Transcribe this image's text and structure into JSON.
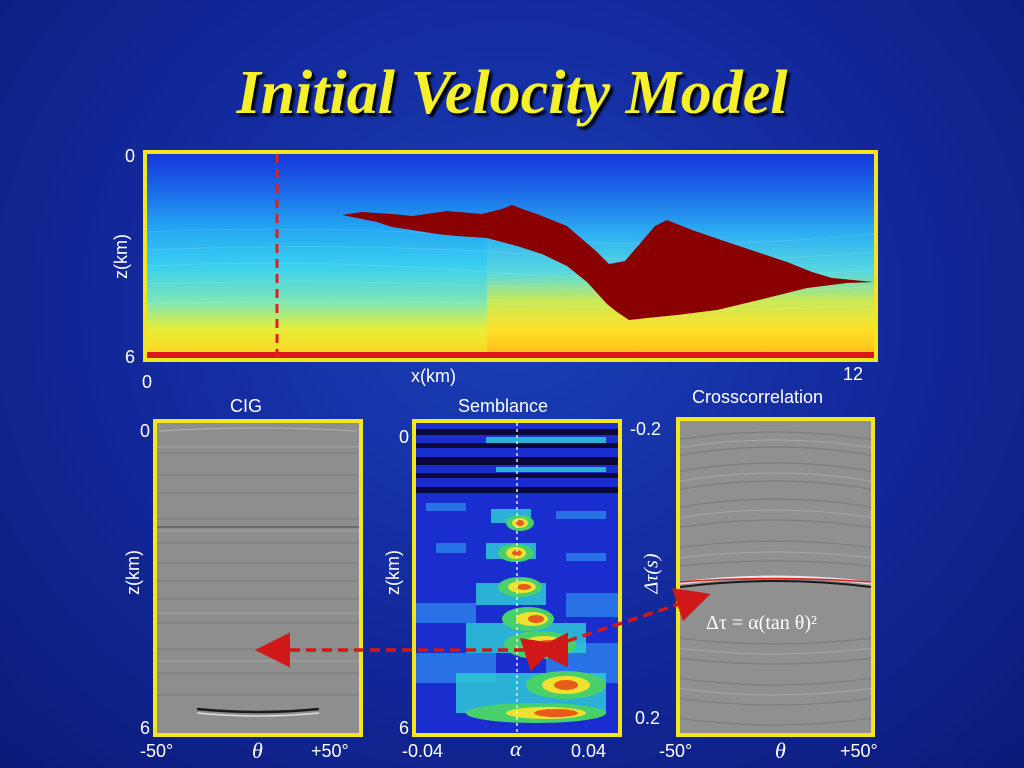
{
  "title": "Initial Velocity Model",
  "model": {
    "z_top": "0",
    "z_bottom": "6",
    "z_label": "z(km)",
    "x_left": "0",
    "x_right": "12",
    "x_label": "x(km)"
  },
  "cig": {
    "title": "CIG",
    "z_top": "0",
    "z_bottom": "6",
    "z_label": "z(km)",
    "x_left": "-50°",
    "x_mid": "θ",
    "x_right": "+50°"
  },
  "semblance": {
    "title": "Semblance",
    "z_top": "0",
    "z_bottom": "6",
    "z_label": "z(km)",
    "x_left": "-0.04",
    "x_mid": "α",
    "x_right": "0.04"
  },
  "crosscorrelation": {
    "title": "Crosscorrelation",
    "y_top": "-0.2",
    "y_bottom": "0.2",
    "y_label": "Δτ(s)",
    "x_left": "-50°",
    "x_mid": "θ",
    "x_right": "+50°",
    "formula": "Δτ = α(tan θ)²"
  },
  "colors": {
    "frame": "#f2e71e",
    "title": "#f6f02a",
    "arrow": "#d01818",
    "salt": "#8a0000"
  }
}
